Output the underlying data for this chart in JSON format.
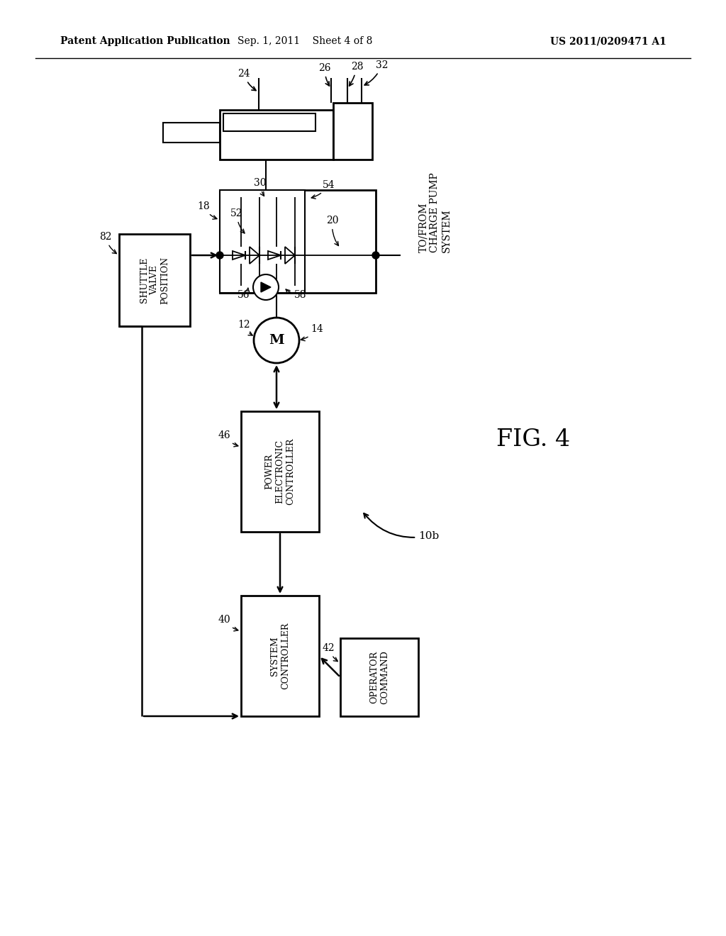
{
  "background_color": "#ffffff",
  "header_left": "Patent Application Publication",
  "header_mid": "Sep. 1, 2011    Sheet 4 of 8",
  "header_right": "US 2011/0209471 A1",
  "fig_label": "FIG. 4",
  "diagram_label": "10b"
}
